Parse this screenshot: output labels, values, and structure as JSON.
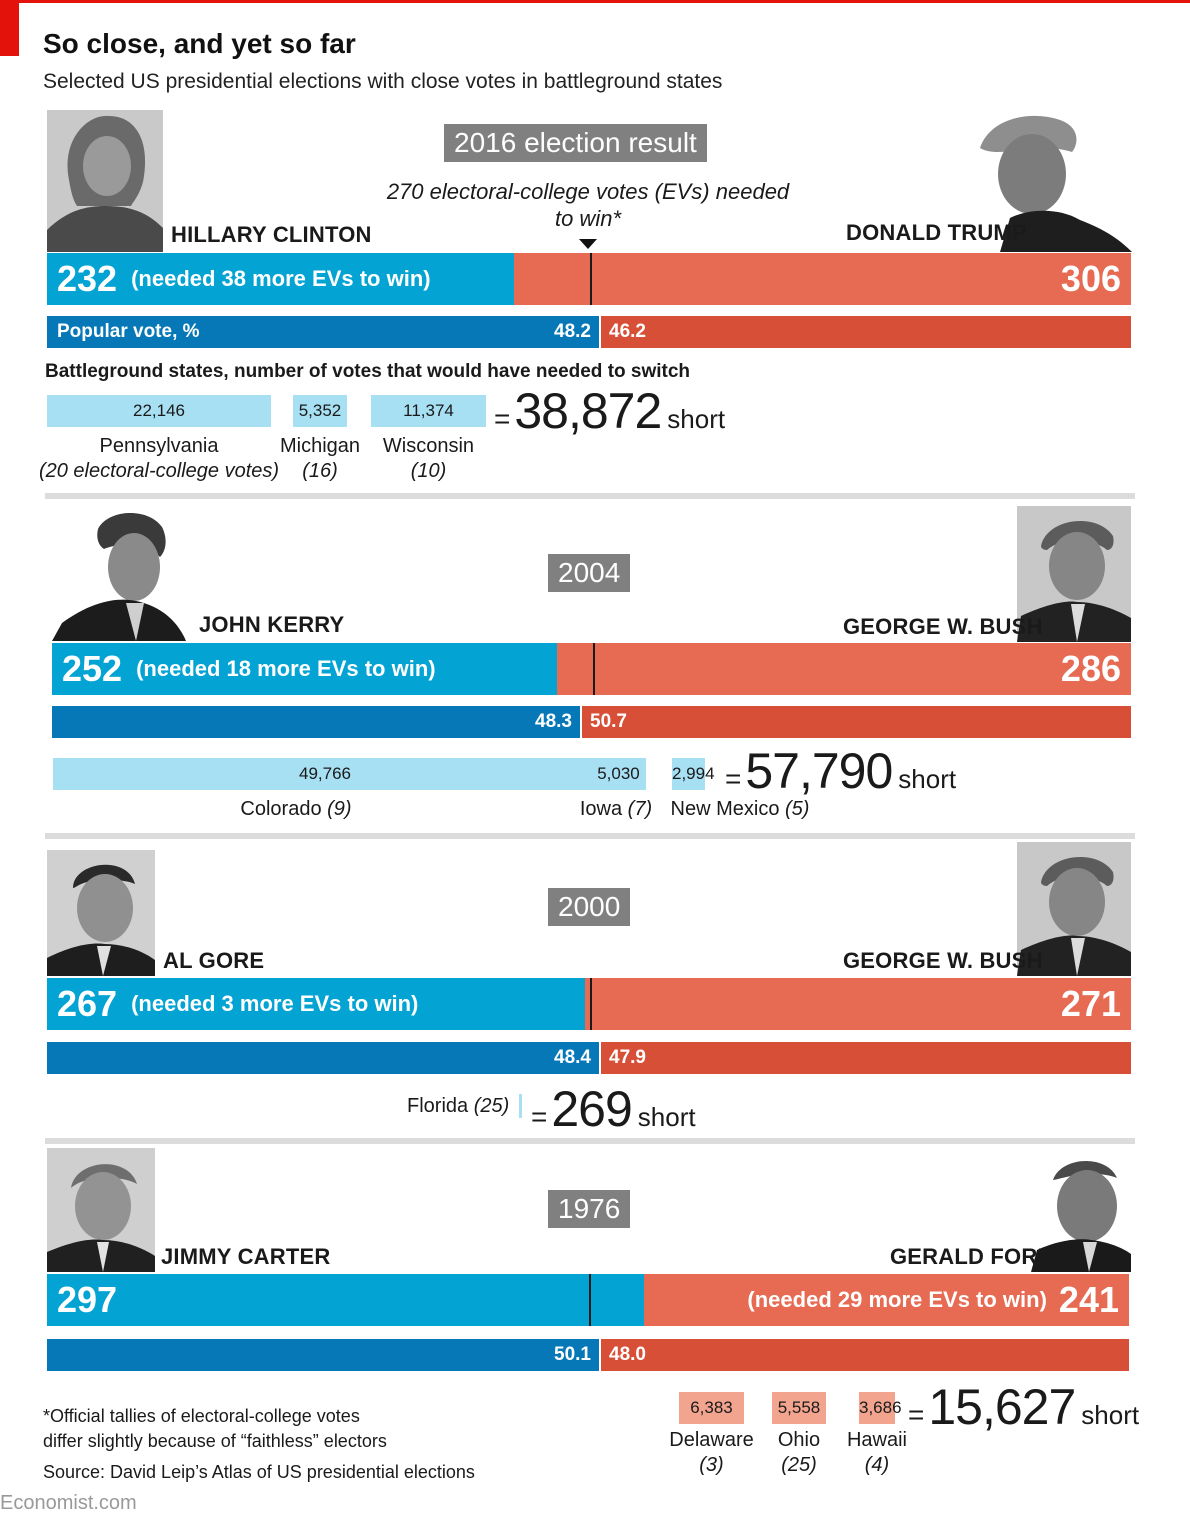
{
  "header": {
    "title": "So close, and yet so far",
    "subtitle": "Selected US presidential elections with close votes in battleground states"
  },
  "note_270": "270 electoral-college votes (EVs) needed to win*",
  "switch_heading": "Battleground states, number of votes that would have needed to switch",
  "popular_label": "Popular vote, %",
  "short_word": "short",
  "colors": {
    "dem_ev": "#03a3d3",
    "rep_ev": "#e76b53",
    "dem_pop": "#0678b7",
    "rep_pop": "#d84f38",
    "switch_dem": "#a7dff3",
    "switch_rep": "#f2a48f",
    "accent": "#e3120b"
  },
  "chart_data": [
    {
      "type": "bar",
      "year_label": "2016 election result",
      "dem": {
        "name": "HILLARY CLINTON",
        "ev": 232,
        "needed": "(needed 38 more EVs to win)",
        "popular": 48.2
      },
      "rep": {
        "name": "DONALD TRUMP",
        "ev": 306,
        "needed": "",
        "popular": 46.2
      },
      "threshold": 270,
      "switch_states": [
        {
          "value": 22146,
          "label": "22,146",
          "state": "Pennsylvania",
          "ev_note": "(20 electoral-college votes)"
        },
        {
          "value": 5352,
          "label": "5,352",
          "state": "Michigan",
          "ev_note": "(16)"
        },
        {
          "value": 11374,
          "label": "11,374",
          "state": "Wisconsin",
          "ev_note": "(10)"
        }
      ],
      "total": {
        "value": 38872,
        "label": "38,872"
      }
    },
    {
      "type": "bar",
      "year_label": "2004",
      "dem": {
        "name": "JOHN KERRY",
        "ev": 252,
        "needed": "(needed 18 more EVs to win)",
        "popular": 48.3
      },
      "rep": {
        "name": "GEORGE W. BUSH",
        "ev": 286,
        "needed": "",
        "popular": 50.7
      },
      "threshold": 270,
      "switch_states": [
        {
          "value": 49766,
          "label": "49,766",
          "state": "Colorado",
          "ev_note": "(9)"
        },
        {
          "value": 5030,
          "label": "5,030",
          "state": "Iowa",
          "ev_note": "(7)"
        },
        {
          "value": 2994,
          "label": "2,994",
          "state": "New Mexico",
          "ev_note": "(5)"
        }
      ],
      "total": {
        "value": 57790,
        "label": "57,790"
      }
    },
    {
      "type": "bar",
      "year_label": "2000",
      "dem": {
        "name": "AL GORE",
        "ev": 267,
        "needed": "(needed 3 more EVs to win)",
        "popular": 48.4
      },
      "rep": {
        "name": "GEORGE W. BUSH",
        "ev": 271,
        "needed": "",
        "popular": 47.9
      },
      "threshold": 270,
      "switch_states": [
        {
          "value": 269,
          "label": "",
          "state": "Florida",
          "ev_note": "(25)"
        }
      ],
      "total": {
        "value": 269,
        "label": "269"
      }
    },
    {
      "type": "bar",
      "year_label": "1976",
      "dem": {
        "name": "JIMMY CARTER",
        "ev": 297,
        "needed": "",
        "popular": 50.1
      },
      "rep": {
        "name": "GERALD FORD",
        "ev": 241,
        "needed": "(needed 29 more EVs to win)",
        "popular": 48.0
      },
      "threshold": 270,
      "switch_states": [
        {
          "value": 6383,
          "label": "6,383",
          "state": "Delaware",
          "ev_note": "(3)"
        },
        {
          "value": 5558,
          "label": "5,558",
          "state": "Ohio",
          "ev_note": "(25)"
        },
        {
          "value": 3686,
          "label": "3,686",
          "state": "Hawaii",
          "ev_note": "(4)"
        }
      ],
      "total": {
        "value": 15627,
        "label": "15,627"
      }
    }
  ],
  "footer": {
    "note_line1": "*Official tallies of electoral-college votes",
    "note_line2": "differ slightly because of “faithless” electors",
    "source": "Source: David Leip’s Atlas of US presidential elections",
    "brand": "Economist.com"
  }
}
